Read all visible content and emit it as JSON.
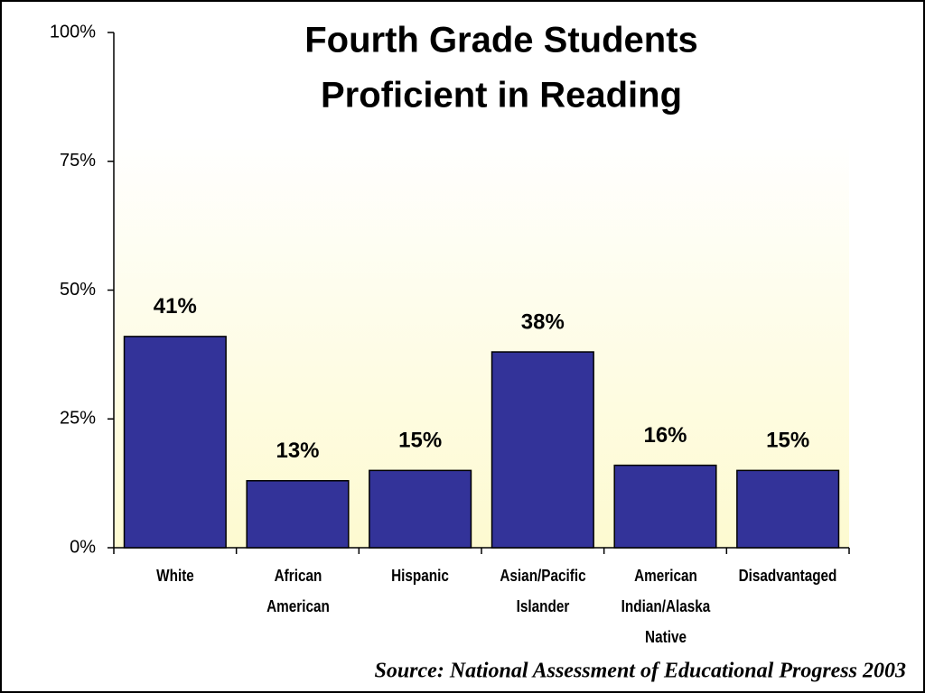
{
  "chart_data": {
    "type": "bar",
    "title": [
      "Fourth Grade Students",
      "Proficient in Reading"
    ],
    "categories": [
      "White",
      "African American",
      "Hispanic",
      "Asian/Pacific Islander",
      "American Indian/Alaska Native",
      "Disadvantaged"
    ],
    "values": [
      41,
      13,
      15,
      38,
      16,
      15
    ],
    "value_labels": [
      "41%",
      "13%",
      "15%",
      "38%",
      "16%",
      "15%"
    ],
    "color": "#333399",
    "ylim": [
      0,
      100
    ],
    "yticks": [
      {
        "value": 0,
        "label": "0%"
      },
      {
        "value": 25,
        "label": "25%"
      },
      {
        "value": 50,
        "label": "50%"
      },
      {
        "value": 75,
        "label": "75%"
      },
      {
        "value": 100,
        "label": "100%"
      }
    ],
    "grid": false,
    "source": "Source: National Assessment of Educational Progress 2003"
  }
}
